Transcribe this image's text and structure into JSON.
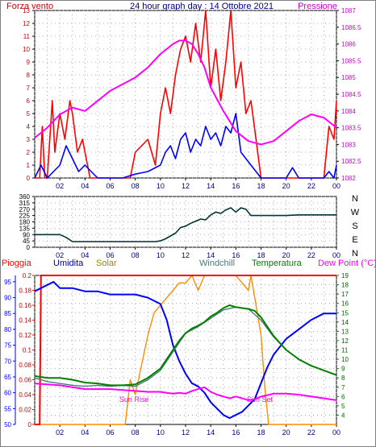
{
  "header": {
    "left_title": "Forza vento",
    "center_title": "24 hour graph day : 14 Ottobre 2021",
    "right_title": "Pressione"
  },
  "colors": {
    "red": "#ff0000",
    "blue": "#0000ff",
    "magenta": "#ff00ff",
    "dark": "#003333",
    "green": "#008000",
    "orange": "#ff8c00",
    "solar_label": "#998800",
    "windchill_label": "#4a7a7a",
    "dew_label": "#ff00ff",
    "gray_grid": "#808080"
  },
  "chart_data": [
    {
      "id": "wind-pressure",
      "type": "line",
      "title": "24 hour graph day : 14 Ottobre 2021",
      "x_ticks": [
        "02",
        "04",
        "06",
        "08",
        "10",
        "12",
        "14",
        "16",
        "18",
        "20",
        "22",
        "00"
      ],
      "y_left": {
        "label": "Forza vento",
        "ticks": [
          0,
          1,
          2,
          3,
          4,
          5,
          6,
          7,
          8,
          9,
          10,
          11,
          12,
          13
        ],
        "lim": [
          0,
          13
        ]
      },
      "y_right": {
        "label": "Pressione",
        "ticks": [
          1082,
          1082.5,
          1083,
          1083.5,
          1084,
          1084.5,
          1085,
          1085.5,
          1086,
          1086.5,
          1087
        ],
        "lim": [
          1082,
          1087
        ]
      },
      "grid": true,
      "series": [
        {
          "key": "gust",
          "color": "#ff0000",
          "x": [
            0,
            0.4,
            0.6,
            0.8,
            1.0,
            1.4,
            1.6,
            2.0,
            2.4,
            2.8,
            3.0,
            3.4,
            3.8,
            4.4,
            5.0,
            6.0,
            7.0,
            7.6,
            8.0,
            9.0,
            9.6,
            10.0,
            10.4,
            10.8,
            11.2,
            11.6,
            12.0,
            12.4,
            12.8,
            13.2,
            13.6,
            14.0,
            14.4,
            14.8,
            15.2,
            15.6,
            16.0,
            16.4,
            16.8,
            17.2,
            17.6,
            18.0,
            19.0,
            20.0,
            21.0,
            22.0,
            23.0,
            23.4,
            23.8,
            24.0
          ],
          "y": [
            0,
            0,
            4,
            0,
            0,
            6,
            2,
            5,
            3,
            6,
            5,
            2,
            3,
            0,
            0,
            0,
            0,
            0,
            2,
            3,
            1,
            5,
            7,
            5,
            8,
            10,
            11,
            9,
            12,
            9,
            13,
            7,
            10,
            6,
            9,
            13,
            7,
            9,
            5,
            6,
            3,
            0,
            0,
            0,
            0,
            0,
            0,
            4,
            3,
            6
          ]
        },
        {
          "key": "wind",
          "color": "#0000ff",
          "x": [
            0,
            0.5,
            1.0,
            1.5,
            2.0,
            2.5,
            3.0,
            3.5,
            4.0,
            5.0,
            6.0,
            7.0,
            8.0,
            9.0,
            10.0,
            10.4,
            10.8,
            11.2,
            11.6,
            12.0,
            12.4,
            12.8,
            13.2,
            13.6,
            14.0,
            14.4,
            14.8,
            15.2,
            15.6,
            16.0,
            16.4,
            16.8,
            17.2,
            17.6,
            18.0,
            19.0,
            20.0,
            20.5,
            21.0,
            22.0,
            23.0,
            23.4,
            23.8,
            24.0
          ],
          "y": [
            0,
            1,
            0,
            0.5,
            1,
            2.5,
            1.5,
            0.5,
            1,
            0,
            0,
            0,
            0.3,
            0.5,
            1,
            2,
            2.5,
            1.5,
            3,
            3.5,
            2,
            3,
            2.5,
            4,
            3,
            3.5,
            2.5,
            4,
            3.5,
            5,
            2,
            1.5,
            1,
            0.5,
            0,
            0,
            0,
            0.8,
            0,
            0,
            0,
            0.5,
            0,
            1
          ]
        },
        {
          "key": "pressure",
          "color": "#ff00ff",
          "x": [
            0,
            1,
            2,
            3,
            4,
            5,
            6,
            7,
            8,
            9,
            10,
            11,
            11.5,
            12,
            12.5,
            13,
            13.5,
            14,
            15,
            16,
            17,
            18,
            19,
            20,
            21,
            22,
            23,
            24
          ],
          "y": [
            1083.2,
            1083.5,
            1083.9,
            1084.1,
            1084.0,
            1084.3,
            1084.6,
            1084.8,
            1085.0,
            1085.3,
            1085.7,
            1086.0,
            1086.1,
            1086.1,
            1086.0,
            1085.7,
            1085.3,
            1084.7,
            1084.0,
            1083.4,
            1083.1,
            1083.0,
            1083.1,
            1083.4,
            1083.7,
            1083.9,
            1083.8,
            1083.5
          ]
        }
      ]
    },
    {
      "id": "wind-direction",
      "type": "line",
      "x_ticks": [
        "02",
        "04",
        "06",
        "08",
        "10",
        "12",
        "14",
        "16",
        "18",
        "20",
        "22",
        "00"
      ],
      "y_left": {
        "ticks": [
          0,
          45,
          90,
          135,
          180,
          225,
          270,
          315,
          360
        ],
        "lim": [
          0,
          360
        ]
      },
      "y_right_labels": [
        "N",
        "W",
        "S",
        "E",
        "N"
      ],
      "grid": true,
      "series": [
        {
          "key": "direction",
          "color": "#003333",
          "x": [
            0,
            1,
            2,
            2.5,
            3,
            4,
            5,
            6,
            7,
            8,
            9,
            9.6,
            10,
            10.4,
            10.8,
            11.2,
            11.6,
            12,
            12.4,
            12.8,
            13.2,
            13.6,
            14,
            14.4,
            14.8,
            15.2,
            15.6,
            16,
            16.4,
            16.8,
            17.2,
            18,
            19,
            20,
            21,
            22,
            23,
            24
          ],
          "y": [
            90,
            90,
            90,
            70,
            40,
            40,
            40,
            40,
            40,
            40,
            40,
            40,
            45,
            60,
            80,
            100,
            140,
            150,
            170,
            185,
            200,
            195,
            230,
            250,
            240,
            265,
            280,
            250,
            280,
            270,
            225,
            225,
            225,
            225,
            230,
            230,
            230,
            230
          ]
        }
      ]
    },
    {
      "id": "rain-humidity-temp",
      "type": "line",
      "x_ticks": [
        "02",
        "04",
        "06",
        "08",
        "10",
        "12",
        "14",
        "16",
        "18",
        "20",
        "22",
        "00"
      ],
      "y_left_1": {
        "label": "Pioggia",
        "ticks": [
          50,
          55,
          60,
          65,
          70,
          75,
          80,
          85,
          90,
          95
        ],
        "lim": [
          50,
          97
        ]
      },
      "y_left_2": {
        "label": "Umidita",
        "ticks": [
          0,
          0.02,
          0.04,
          0.06,
          0.08,
          0.1,
          0.12,
          0.14,
          0.16,
          0.18,
          0.2
        ],
        "lim": [
          0,
          0.2
        ]
      },
      "y_right": {
        "label": "Dew Point (°C)",
        "ticks": [
          4,
          5,
          6,
          7,
          8,
          9,
          10,
          11,
          12,
          13,
          14,
          15,
          16,
          17,
          18,
          19
        ],
        "lim": [
          3,
          19
        ]
      },
      "legend": [
        "Umidita",
        "Solar",
        "Windchill",
        "Temperatura",
        "Dew Point (°C)"
      ],
      "annotations": [
        "Sun Rise",
        "Sun Set"
      ],
      "grid": true,
      "series": [
        {
          "key": "rain",
          "color": "#ff0000",
          "x": [
            0,
            0.4,
            0.5,
            0.6,
            1,
            24
          ],
          "y": [
            0,
            0,
            0.2,
            0.2,
            0.2,
            0.2
          ]
        },
        {
          "key": "humidity",
          "color": "#0000ff",
          "x": [
            0,
            0.5,
            1,
            1.5,
            2,
            3,
            4,
            5,
            6,
            7,
            8,
            9,
            10,
            10.5,
            11,
            11.5,
            12,
            12.5,
            13,
            13.5,
            14,
            14.5,
            15,
            15.5,
            16,
            16.5,
            17,
            17.5,
            18,
            18.5,
            19,
            20,
            21,
            22,
            23,
            24
          ],
          "y": [
            92,
            93,
            94,
            95,
            93,
            93,
            92,
            92,
            91,
            91,
            91,
            90,
            88,
            83,
            75,
            70,
            66,
            63,
            62,
            60,
            57,
            55,
            53,
            52,
            53,
            54,
            56,
            58,
            63,
            68,
            72,
            77,
            80,
            83,
            85,
            85
          ]
        },
        {
          "key": "solar",
          "color": "#ff8c00",
          "x": [
            0,
            7.2,
            7.4,
            7.6,
            8,
            8.5,
            9,
            9.5,
            10,
            10.5,
            11,
            11.5,
            12,
            12.5,
            13,
            13.5,
            14,
            14.5,
            15,
            15.5,
            16,
            16.5,
            17,
            17.2,
            17.6,
            18,
            18.3,
            18.6,
            24
          ],
          "y": [
            0,
            0,
            0.03,
            0.06,
            0.04,
            0.08,
            0.12,
            0.15,
            0.16,
            0.17,
            0.18,
            0.19,
            0.19,
            0.2,
            0.18,
            0.2,
            0.2,
            0.2,
            0.2,
            0.2,
            0.2,
            0.19,
            0.18,
            0.2,
            0.16,
            0.12,
            0.05,
            0,
            0
          ]
        },
        {
          "key": "temperature",
          "color": "#008000",
          "x": [
            0,
            1,
            2,
            3,
            4,
            5,
            6,
            7,
            8,
            9,
            10,
            10.5,
            11,
            11.5,
            12,
            12.5,
            13,
            13.5,
            14,
            14.5,
            15,
            15.5,
            16,
            16.5,
            17,
            17.5,
            18,
            18.5,
            19,
            20,
            21,
            22,
            23,
            24
          ],
          "y": [
            8.2,
            8.0,
            8.0,
            7.8,
            7.5,
            7.4,
            7.2,
            7.2,
            7.3,
            8.0,
            9.0,
            10.0,
            11.0,
            12.0,
            12.8,
            13.3,
            13.6,
            14.0,
            14.6,
            15.0,
            15.5,
            15.8,
            15.6,
            15.5,
            15.4,
            15.2,
            14.5,
            13.5,
            12.5,
            11.0,
            10.0,
            9.3,
            8.8,
            8.3
          ]
        },
        {
          "key": "windchill",
          "color": "#4a7a7a",
          "x": [
            0,
            1,
            2,
            3,
            4,
            5,
            6,
            7,
            8,
            9,
            10,
            11,
            12,
            13,
            14,
            15,
            16,
            17,
            18,
            19,
            20,
            21,
            22,
            23,
            24
          ],
          "y": [
            8.0,
            7.6,
            7.4,
            7.2,
            7.1,
            7.2,
            7.1,
            7.2,
            7.1,
            7.8,
            8.8,
            10.8,
            12.8,
            13.5,
            14.4,
            15.3,
            15.6,
            15.4,
            14.2,
            12.4,
            11.0,
            10.0,
            9.3,
            8.8,
            8.3
          ]
        },
        {
          "key": "dewpoint",
          "color": "#ff00ff",
          "x": [
            0,
            1,
            2,
            3,
            4,
            5,
            6,
            7,
            8,
            9,
            10,
            10.5,
            11,
            11.5,
            12,
            12.5,
            13,
            13.5,
            14,
            14.5,
            15,
            15.5,
            16,
            16.5,
            17,
            17.5,
            18,
            19,
            20,
            21,
            22,
            23,
            24
          ],
          "y": [
            7.4,
            7.3,
            7.2,
            7.0,
            6.8,
            6.8,
            6.8,
            6.7,
            6.6,
            6.5,
            6.5,
            6.4,
            6.3,
            6.4,
            6.3,
            6.6,
            6.8,
            7.0,
            6.5,
            6.2,
            6.0,
            5.8,
            6.0,
            5.8,
            5.6,
            5.7,
            6.0,
            6.3,
            6.3,
            6.2,
            6.0,
            5.8,
            5.6
          ]
        }
      ]
    }
  ]
}
